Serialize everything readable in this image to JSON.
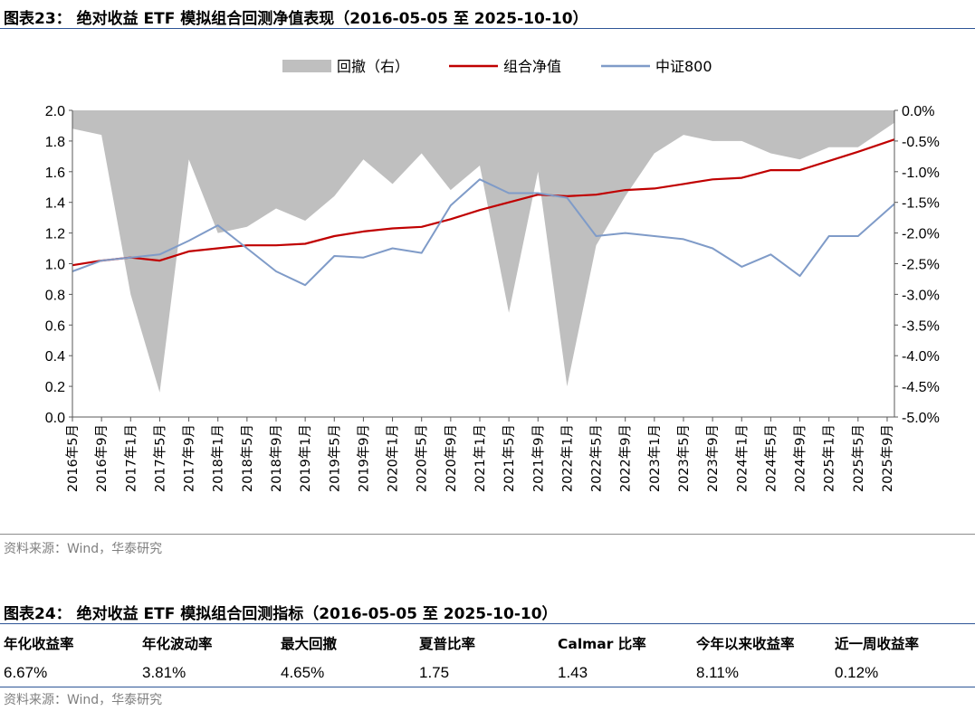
{
  "figure23": {
    "title": "图表23： 绝对收益 ETF 模拟组合回测净值表现（2016-05-05 至 2025-10-10）",
    "source": "资料来源：Wind，华泰研究"
  },
  "chart_data": {
    "type": "line",
    "title": "",
    "legend_position": "top-center",
    "legend": [
      {
        "name": "回撤（右）",
        "color": "#bfbfbf",
        "kind": "area"
      },
      {
        "name": "组合净值",
        "color": "#c00000",
        "kind": "line"
      },
      {
        "name": "中证800",
        "color": "#7f9bc8",
        "kind": "line"
      }
    ],
    "y_left": {
      "min": 0.0,
      "max": 2.0,
      "ticks": [
        "2.0",
        "1.8",
        "1.6",
        "1.4",
        "1.2",
        "1.0",
        "0.8",
        "0.6",
        "0.4",
        "0.2",
        "0.0"
      ]
    },
    "y_right": {
      "min": -5.0,
      "max": 0.0,
      "ticks": [
        "0.0%",
        "-0.5%",
        "-1.0%",
        "-1.5%",
        "-2.0%",
        "-2.5%",
        "-3.0%",
        "-3.5%",
        "-4.0%",
        "-4.5%",
        "-5.0%"
      ]
    },
    "x_ticks": [
      "2016年5月",
      "2016年9月",
      "2017年1月",
      "2017年5月",
      "2017年9月",
      "2018年1月",
      "2018年5月",
      "2018年9月",
      "2019年1月",
      "2019年5月",
      "2019年9月",
      "2020年1月",
      "2020年5月",
      "2020年9月",
      "2021年1月",
      "2021年5月",
      "2021年9月",
      "2022年1月",
      "2022年5月",
      "2022年9月",
      "2023年1月",
      "2023年5月",
      "2023年9月",
      "2024年1月",
      "2024年5月",
      "2024年9月",
      "2025年1月",
      "2025年5月",
      "2025年9月"
    ],
    "x_range": [
      "2016-05",
      "2025-10"
    ],
    "grid": false,
    "series": [
      {
        "name": "组合净值",
        "axis": "left",
        "x": [
          "2016-05",
          "2016-09",
          "2017-01",
          "2017-05",
          "2017-09",
          "2018-01",
          "2018-05",
          "2018-09",
          "2019-01",
          "2019-05",
          "2019-09",
          "2020-01",
          "2020-05",
          "2020-09",
          "2021-01",
          "2021-05",
          "2021-09",
          "2022-01",
          "2022-05",
          "2022-09",
          "2023-01",
          "2023-05",
          "2023-09",
          "2024-01",
          "2024-05",
          "2024-09",
          "2025-01",
          "2025-05",
          "2025-10"
        ],
        "values": [
          0.99,
          1.02,
          1.04,
          1.02,
          1.08,
          1.1,
          1.12,
          1.12,
          1.13,
          1.18,
          1.21,
          1.23,
          1.24,
          1.29,
          1.35,
          1.4,
          1.45,
          1.44,
          1.45,
          1.48,
          1.49,
          1.52,
          1.55,
          1.56,
          1.61,
          1.61,
          1.67,
          1.73,
          1.81
        ]
      },
      {
        "name": "中证800",
        "axis": "left",
        "x": [
          "2016-05",
          "2016-09",
          "2017-01",
          "2017-05",
          "2017-09",
          "2018-01",
          "2018-05",
          "2018-09",
          "2019-01",
          "2019-05",
          "2019-09",
          "2020-01",
          "2020-05",
          "2020-09",
          "2021-01",
          "2021-05",
          "2021-09",
          "2022-01",
          "2022-05",
          "2022-09",
          "2023-01",
          "2023-05",
          "2023-09",
          "2024-01",
          "2024-05",
          "2024-09",
          "2025-01",
          "2025-05",
          "2025-10"
        ],
        "values": [
          0.95,
          1.02,
          1.04,
          1.06,
          1.15,
          1.25,
          1.1,
          0.95,
          0.86,
          1.05,
          1.04,
          1.1,
          1.07,
          1.38,
          1.55,
          1.46,
          1.46,
          1.43,
          1.18,
          1.2,
          1.18,
          1.16,
          1.1,
          0.98,
          1.06,
          0.92,
          1.18,
          1.18,
          1.39
        ]
      },
      {
        "name": "回撤（右）",
        "axis": "right",
        "x": [
          "2016-05",
          "2016-09",
          "2017-01",
          "2017-05",
          "2017-09",
          "2018-01",
          "2018-05",
          "2018-09",
          "2019-01",
          "2019-05",
          "2019-09",
          "2020-01",
          "2020-05",
          "2020-09",
          "2021-01",
          "2021-05",
          "2021-09",
          "2022-01",
          "2022-05",
          "2022-09",
          "2023-01",
          "2023-05",
          "2023-09",
          "2024-01",
          "2024-05",
          "2024-09",
          "2025-01",
          "2025-05",
          "2025-10"
        ],
        "values": [
          -0.3,
          -0.4,
          -3.0,
          -4.6,
          -0.8,
          -2.0,
          -1.9,
          -1.6,
          -1.8,
          -1.4,
          -0.8,
          -1.2,
          -0.7,
          -1.3,
          -0.9,
          -3.3,
          -1.0,
          -4.5,
          -2.2,
          -1.4,
          -0.7,
          -0.4,
          -0.5,
          -0.5,
          -0.7,
          -0.8,
          -0.6,
          -0.6,
          -0.2
        ]
      }
    ]
  },
  "figure24": {
    "title": "图表24： 绝对收益 ETF 模拟组合回测指标（2016-05-05 至 2025-10-10）",
    "headers": [
      "年化收益率",
      "年化波动率",
      "最大回撤",
      "夏普比率",
      "Calmar 比率",
      "今年以来收益率",
      "近一周收益率"
    ],
    "values": [
      "6.67%",
      "3.81%",
      "4.65%",
      "1.75",
      "1.43",
      "8.11%",
      "0.12%"
    ],
    "source": "资料来源：Wind，华泰研究"
  }
}
